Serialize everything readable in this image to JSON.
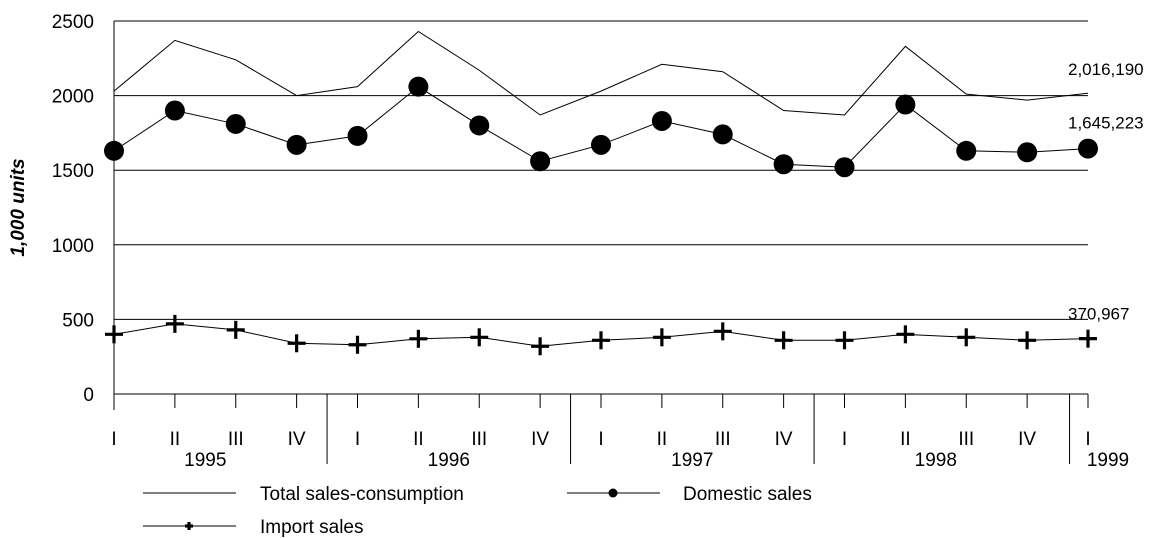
{
  "chart_data": {
    "type": "line",
    "ylabel": "1,000 units",
    "ylim": [
      0,
      2500
    ],
    "y_ticks": [
      "0",
      "500",
      "1000",
      "1500",
      "2000",
      "2500"
    ],
    "grid": "horizontal",
    "categories": [
      "I",
      "II",
      "III",
      "IV",
      "I",
      "II",
      "III",
      "IV",
      "I",
      "II",
      "III",
      "IV",
      "I",
      "II",
      "III",
      "IV",
      "I"
    ],
    "years": [
      {
        "label": "1995",
        "span": [
          0,
          3
        ]
      },
      {
        "label": "1996",
        "span": [
          4,
          7
        ]
      },
      {
        "label": "1997",
        "span": [
          8,
          11
        ]
      },
      {
        "label": "1998",
        "span": [
          12,
          15
        ]
      },
      {
        "label": "1999",
        "span": [
          16,
          16
        ]
      }
    ],
    "series": [
      {
        "name": "Total sales-consumption",
        "marker": "none",
        "values": [
          2030,
          2370,
          2240,
          2000,
          2060,
          2430,
          2170,
          1870,
          2030,
          2210,
          2160,
          1900,
          1870,
          2330,
          2010,
          1970,
          2016
        ]
      },
      {
        "name": "Domestic sales",
        "marker": "circle",
        "values": [
          1630,
          1900,
          1810,
          1670,
          1730,
          2060,
          1800,
          1560,
          1670,
          1830,
          1740,
          1540,
          1520,
          1940,
          1630,
          1620,
          1645
        ]
      },
      {
        "name": "Import sales",
        "marker": "plus",
        "values": [
          400,
          470,
          430,
          340,
          330,
          370,
          380,
          320,
          360,
          380,
          420,
          360,
          360,
          400,
          380,
          360,
          371
        ]
      }
    ],
    "annotations": [
      {
        "text": "2,016,190",
        "series": 0
      },
      {
        "text": "1,645,223",
        "series": 1
      },
      {
        "text": "370,967",
        "series": 2
      }
    ],
    "legend_position": "bottom"
  }
}
